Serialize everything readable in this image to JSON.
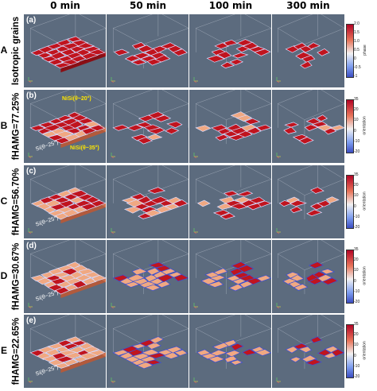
{
  "columns": [
    "0 min",
    "50 min",
    "100 min",
    "300 min"
  ],
  "rows": [
    {
      "letter": "A",
      "label": "Isotropic grains",
      "tag": "(a)",
      "colorbar": {
        "title": "phase",
        "ticks": [
          "2.0",
          "1.5",
          "1.0",
          "0.5",
          "0",
          "-0.5",
          "-1"
        ]
      }
    },
    {
      "letter": "B",
      "label": "fHAMG=77.25%",
      "tag": "(b)",
      "colorbar": {
        "title": "orientation",
        "ticks": [
          "35",
          "20",
          "10",
          "0",
          "-10",
          "-20"
        ]
      },
      "annotations": {
        "nisi_20": "NiSi(θ~20°)",
        "nisi_35": "NiSi(θ~35°)",
        "si": "Si(θ~25°)"
      }
    },
    {
      "letter": "C",
      "label": "fHAMG=56.70%",
      "tag": "(c)",
      "colorbar": {
        "title": "orientation",
        "ticks": [
          "35",
          "20",
          "10",
          "0",
          "-10",
          "-20"
        ]
      },
      "annotations": {
        "si": "Si(θ~25°)"
      }
    },
    {
      "letter": "D",
      "label": "fHAMG=30.67%",
      "tag": "(d)",
      "colorbar": {
        "title": "orientation",
        "ticks": [
          "35",
          "20",
          "10",
          "0",
          "-10",
          "-20"
        ]
      },
      "annotations": {
        "si": "Si(θ~25°)"
      }
    },
    {
      "letter": "E",
      "label": "fHAMG=22.65%",
      "tag": "(e)",
      "colorbar": {
        "title": "orientation",
        "ticks": [
          "35",
          "20",
          "10",
          "0",
          "-10",
          "-20"
        ]
      },
      "annotations": {
        "si": "Si(θ~25°)"
      }
    }
  ],
  "colors": {
    "panel_bg": "#5c6b7e",
    "red_grain": "#c0141e",
    "orange_grain": "#f0a882",
    "boundary": "#d9dcff",
    "blue_boundary": "#3a4fd8",
    "annotation_yellow": "#ffe600"
  }
}
